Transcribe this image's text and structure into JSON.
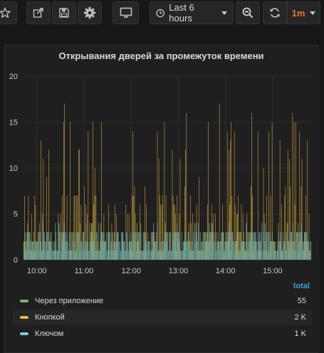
{
  "toolbar": {
    "time_range": "Last 6 hours",
    "refresh_interval": "1m"
  },
  "colors": {
    "accent": "#eb7b18",
    "link": "#33a2e5",
    "panel_bg": "#1f1f20"
  },
  "chart_data": {
    "type": "bar",
    "title": "Открывания дверей за промежуток времени",
    "x_ticks": [
      "10:00",
      "11:00",
      "12:00",
      "13:00",
      "14:00",
      "15:00"
    ],
    "y_ticks": [
      "0",
      "5",
      "10",
      "15",
      "20"
    ],
    "ylim": [
      0,
      20
    ],
    "grid": true,
    "legend_position": "bottom",
    "legend_header": "total",
    "series": [
      {
        "name": "Через приложение",
        "color": "#7eb26d",
        "total": "55",
        "stack_role": "base"
      },
      {
        "name": "Кнопкой",
        "color": "#eab839",
        "total": "2 K"
      },
      {
        "name": "Ключом",
        "color": "#6ed0e0",
        "total": "1 K"
      }
    ],
    "buckets_per_hour": 60,
    "time_start": "09:43",
    "time_end": "15:49"
  }
}
